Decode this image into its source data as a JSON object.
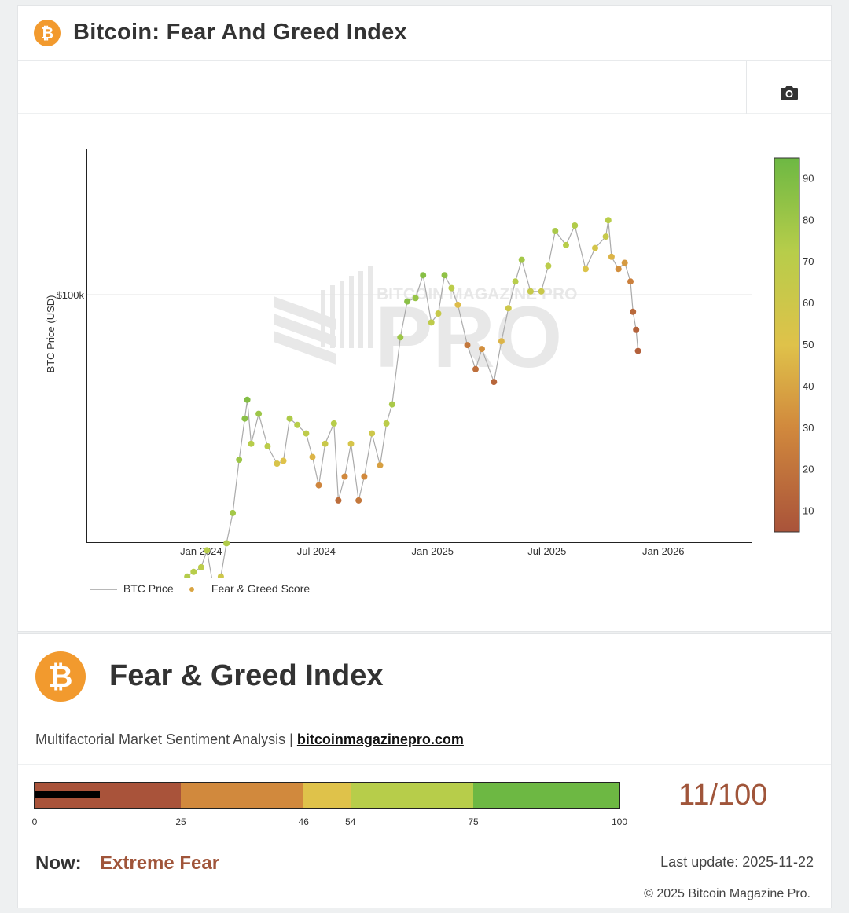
{
  "header": {
    "title": "Bitcoin: Fear And Greed Index",
    "logo_glyph": "₿"
  },
  "toolbar": {
    "camera_icon": "camera-icon"
  },
  "chart_data": {
    "type": "scatter",
    "title": "",
    "xlabel": "",
    "ylabel": "BTC Price (USD)",
    "y_scale": "log",
    "y_tick_labels": [
      "$100k"
    ],
    "x_tick_labels": [
      "Jan 2024",
      "Jul 2024",
      "Jan 2025",
      "Jul 2025",
      "Jan 2026"
    ],
    "colorbar_ticks": [
      10,
      20,
      30,
      40,
      50,
      60,
      70,
      80,
      90
    ],
    "colorbar_range": [
      5,
      95
    ],
    "legend": [
      "BTC Price",
      "Fear & Greed Score"
    ],
    "legend_position": "bottom-left",
    "grid": "horizontal",
    "watermark": "BITCOIN MAGAZINE PRO",
    "series": [
      {
        "name": "BTC Price",
        "points": [
          [
            "2023-11-20",
            37400,
            71
          ],
          [
            "2023-12-01",
            38600,
            72
          ],
          [
            "2023-12-10",
            43000,
            73
          ],
          [
            "2023-12-20",
            43600,
            72
          ],
          [
            "2024-01-01",
            44200,
            70
          ],
          [
            "2024-01-10",
            46500,
            72
          ],
          [
            "2024-01-20",
            41800,
            52
          ],
          [
            "2024-02-01",
            43000,
            60
          ],
          [
            "2024-02-10",
            47500,
            74
          ],
          [
            "2024-02-20",
            52000,
            78
          ],
          [
            "2024-03-01",
            61000,
            80
          ],
          [
            "2024-03-10",
            69000,
            86
          ],
          [
            "2024-03-14",
            73000,
            88
          ],
          [
            "2024-03-20",
            64000,
            72
          ],
          [
            "2024-04-01",
            70000,
            80
          ],
          [
            "2024-04-15",
            63500,
            70
          ],
          [
            "2024-04-30",
            60300,
            54
          ],
          [
            "2024-05-10",
            60800,
            50
          ],
          [
            "2024-05-20",
            69000,
            75
          ],
          [
            "2024-06-01",
            67700,
            72
          ],
          [
            "2024-06-15",
            66000,
            68
          ],
          [
            "2024-06-25",
            61500,
            45
          ],
          [
            "2024-07-05",
            56500,
            28
          ],
          [
            "2024-07-15",
            64000,
            62
          ],
          [
            "2024-07-29",
            68000,
            72
          ],
          [
            "2024-08-05",
            54000,
            17
          ],
          [
            "2024-08-15",
            58000,
            30
          ],
          [
            "2024-08-25",
            64000,
            55
          ],
          [
            "2024-09-06",
            54000,
            22
          ],
          [
            "2024-09-15",
            58000,
            30
          ],
          [
            "2024-09-27",
            66000,
            60
          ],
          [
            "2024-10-10",
            60000,
            38
          ],
          [
            "2024-10-20",
            68000,
            70
          ],
          [
            "2024-10-29",
            72000,
            76
          ],
          [
            "2024-11-11",
            88000,
            80
          ],
          [
            "2024-11-22",
            98000,
            86
          ],
          [
            "2024-12-05",
            99000,
            82
          ],
          [
            "2024-12-17",
            106000,
            87
          ],
          [
            "2024-12-30",
            92000,
            68
          ],
          [
            "2025-01-10",
            94500,
            64
          ],
          [
            "2025-01-20",
            106000,
            84
          ],
          [
            "2025-01-31",
            102000,
            70
          ],
          [
            "2025-02-10",
            97000,
            48
          ],
          [
            "2025-02-25",
            86000,
            22
          ],
          [
            "2025-03-10",
            80000,
            18
          ],
          [
            "2025-03-20",
            85000,
            32
          ],
          [
            "2025-04-08",
            77000,
            14
          ],
          [
            "2025-04-20",
            87000,
            45
          ],
          [
            "2025-05-01",
            96000,
            60
          ],
          [
            "2025-05-12",
            104000,
            72
          ],
          [
            "2025-05-22",
            111000,
            78
          ],
          [
            "2025-06-05",
            101000,
            64
          ],
          [
            "2025-06-22",
            101000,
            62
          ],
          [
            "2025-07-03",
            109000,
            70
          ],
          [
            "2025-07-14",
            121000,
            76
          ],
          [
            "2025-07-31",
            116000,
            72
          ],
          [
            "2025-08-14",
            123000,
            74
          ],
          [
            "2025-08-31",
            108000,
            52
          ],
          [
            "2025-09-15",
            115000,
            56
          ],
          [
            "2025-10-02",
            119000,
            64
          ],
          [
            "2025-10-06",
            125000,
            71
          ],
          [
            "2025-10-11",
            112000,
            45
          ],
          [
            "2025-10-22",
            108000,
            32
          ],
          [
            "2025-11-01",
            110000,
            36
          ],
          [
            "2025-11-10",
            104000,
            26
          ],
          [
            "2025-11-14",
            95000,
            15
          ],
          [
            "2025-11-19",
            90000,
            12
          ],
          [
            "2025-11-22",
            84500,
            11
          ]
        ]
      }
    ]
  },
  "legend": {
    "price_label": "BTC Price",
    "score_label": "Fear & Greed Score",
    "price_line_color": "#b8b8b8",
    "score_dot_color": "#d9a441"
  },
  "index_card": {
    "title": "Fear & Greed Index",
    "subtitle": "Multifactorial Market Sentiment Analysis",
    "separator": "|",
    "link_text": "bitcoinmagazinepro.com",
    "score": 11,
    "score_text": "11/100",
    "gauge_segments": [
      {
        "from": 0,
        "to": 25,
        "color": "#a9533a"
      },
      {
        "from": 25,
        "to": 46,
        "color": "#d1893d"
      },
      {
        "from": 46,
        "to": 54,
        "color": "#dfc24a"
      },
      {
        "from": 54,
        "to": 75,
        "color": "#b7cd4a"
      },
      {
        "from": 75,
        "to": 100,
        "color": "#6db843"
      }
    ],
    "gauge_labels": [
      "0",
      "25",
      "46",
      "54",
      "75",
      "100"
    ],
    "now_label": "Now:",
    "now_value": "Extreme Fear",
    "last_update": "Last update: 2025-11-22",
    "copyright": "© 2025 Bitcoin Magazine Pro."
  }
}
